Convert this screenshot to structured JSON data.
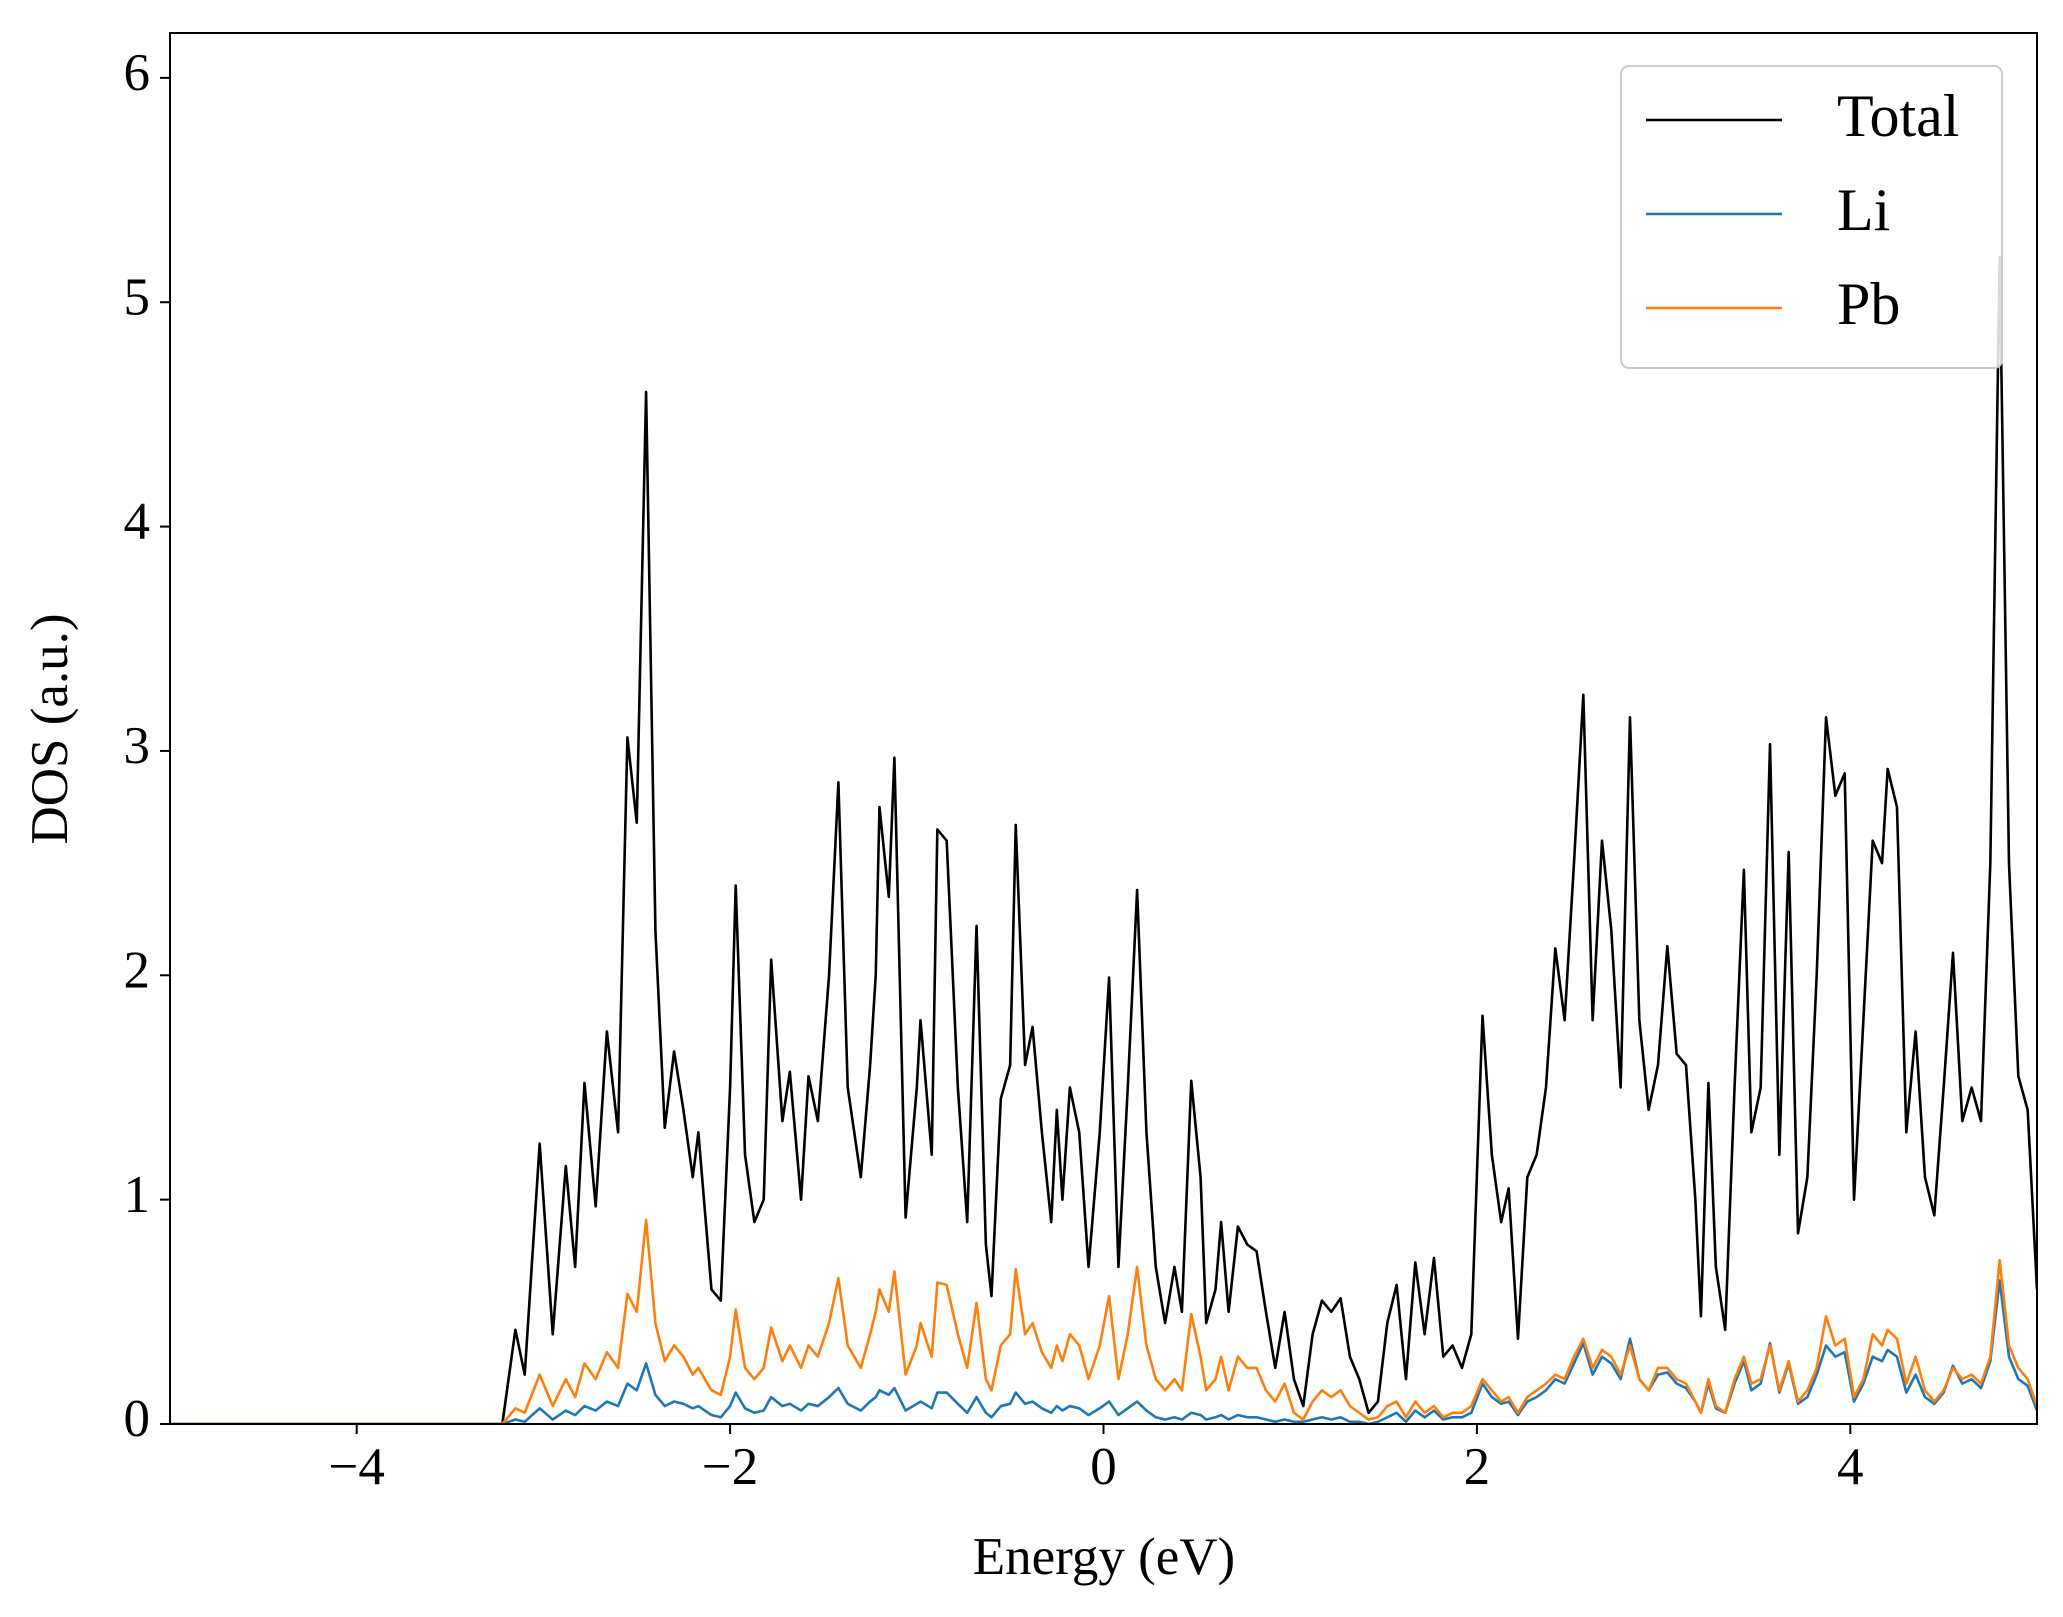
{
  "chart_data": {
    "type": "line",
    "xlabel": "Energy (eV)",
    "ylabel": "DOS (a.u.)",
    "xlim": [
      -5,
      5
    ],
    "ylim": [
      0,
      6.2
    ],
    "xticks": [
      {
        "value": -4,
        "label": "−4"
      },
      {
        "value": -2,
        "label": "−2"
      },
      0,
      2,
      4
    ],
    "yticks": [
      0,
      1,
      2,
      3,
      4,
      5,
      6
    ],
    "legend": "upper right",
    "grid": false,
    "x": [
      -5,
      -4,
      -3.3,
      -3.22,
      -3.15,
      -3.1,
      -3.02,
      -2.95,
      -2.88,
      -2.83,
      -2.78,
      -2.72,
      -2.66,
      -2.6,
      -2.55,
      -2.5,
      -2.45,
      -2.4,
      -2.35,
      -2.3,
      -2.25,
      -2.2,
      -2.17,
      -2.1,
      -2.05,
      -2.0,
      -1.97,
      -1.92,
      -1.87,
      -1.82,
      -1.78,
      -1.72,
      -1.68,
      -1.62,
      -1.58,
      -1.53,
      -1.47,
      -1.42,
      -1.37,
      -1.3,
      -1.25,
      -1.22,
      -1.2,
      -1.15,
      -1.12,
      -1.06,
      -1.0,
      -0.98,
      -0.92,
      -0.89,
      -0.84,
      -0.78,
      -0.73,
      -0.68,
      -0.63,
      -0.6,
      -0.55,
      -0.5,
      -0.47,
      -0.42,
      -0.38,
      -0.33,
      -0.28,
      -0.25,
      -0.22,
      -0.18,
      -0.13,
      -0.08,
      -0.02,
      0.03,
      0.08,
      0.13,
      0.18,
      0.23,
      0.28,
      0.33,
      0.38,
      0.42,
      0.47,
      0.52,
      0.55,
      0.6,
      0.63,
      0.67,
      0.72,
      0.77,
      0.82,
      0.87,
      0.92,
      0.97,
      1.02,
      1.07,
      1.12,
      1.17,
      1.22,
      1.27,
      1.32,
      1.37,
      1.42,
      1.47,
      1.52,
      1.57,
      1.62,
      1.67,
      1.72,
      1.77,
      1.82,
      1.87,
      1.92,
      1.97,
      2.03,
      2.08,
      2.13,
      2.17,
      2.22,
      2.27,
      2.32,
      2.37,
      2.42,
      2.47,
      2.52,
      2.57,
      2.62,
      2.67,
      2.72,
      2.77,
      2.82,
      2.87,
      2.92,
      2.97,
      3.02,
      3.07,
      3.12,
      3.17,
      3.2,
      3.24,
      3.28,
      3.33,
      3.38,
      3.43,
      3.47,
      3.52,
      3.57,
      3.62,
      3.67,
      3.72,
      3.77,
      3.82,
      3.87,
      3.92,
      3.97,
      4.02,
      4.07,
      4.12,
      4.17,
      4.2,
      4.25,
      4.3,
      4.35,
      4.4,
      4.45,
      4.5,
      4.55,
      4.6,
      4.65,
      4.7,
      4.75,
      4.8,
      4.85,
      4.9,
      4.95,
      5.0
    ],
    "series": [
      {
        "name": "Total",
        "color": "#000000",
        "values": [
          0,
          0,
          0,
          0,
          0.42,
          0.22,
          1.25,
          0.4,
          1.15,
          0.7,
          1.52,
          0.97,
          1.75,
          1.3,
          3.06,
          2.68,
          4.6,
          2.2,
          1.32,
          1.66,
          1.4,
          1.1,
          1.3,
          0.6,
          0.55,
          1.5,
          2.4,
          1.2,
          0.9,
          1.0,
          2.07,
          1.35,
          1.57,
          1.0,
          1.55,
          1.35,
          2.0,
          2.86,
          1.5,
          1.1,
          1.6,
          2.0,
          2.75,
          2.35,
          2.97,
          0.92,
          1.5,
          1.8,
          1.2,
          2.65,
          2.6,
          1.5,
          0.9,
          2.22,
          0.8,
          0.57,
          1.45,
          1.6,
          2.67,
          1.6,
          1.77,
          1.3,
          0.9,
          1.4,
          1.0,
          1.5,
          1.3,
          0.7,
          1.3,
          1.99,
          0.7,
          1.5,
          2.38,
          1.3,
          0.7,
          0.45,
          0.7,
          0.5,
          1.53,
          1.1,
          0.45,
          0.6,
          0.9,
          0.5,
          0.88,
          0.8,
          0.77,
          0.5,
          0.25,
          0.5,
          0.2,
          0.08,
          0.4,
          0.55,
          0.5,
          0.56,
          0.3,
          0.2,
          0.05,
          0.1,
          0.45,
          0.62,
          0.2,
          0.72,
          0.4,
          0.74,
          0.3,
          0.35,
          0.25,
          0.4,
          1.82,
          1.2,
          0.9,
          1.05,
          0.38,
          1.1,
          1.2,
          1.5,
          2.12,
          1.8,
          2.5,
          3.25,
          1.8,
          2.6,
          2.2,
          1.5,
          3.15,
          1.8,
          1.4,
          1.6,
          2.13,
          1.65,
          1.6,
          1.0,
          0.48,
          1.52,
          0.7,
          0.42,
          1.5,
          2.47,
          1.3,
          1.5,
          3.03,
          1.2,
          2.55,
          0.85,
          1.1,
          2.0,
          3.15,
          2.8,
          2.9,
          1.0,
          1.8,
          2.6,
          2.5,
          2.92,
          2.75,
          1.3,
          1.75,
          1.1,
          0.93,
          1.5,
          2.1,
          1.35,
          1.5,
          1.35,
          2.5,
          5.2,
          2.5,
          1.55,
          1.4,
          0.6
        ]
      },
      {
        "name": "Li",
        "color": "#1f77b4",
        "values": [
          0,
          0,
          0,
          0,
          0.02,
          0.01,
          0.07,
          0.02,
          0.06,
          0.04,
          0.08,
          0.06,
          0.1,
          0.08,
          0.18,
          0.15,
          0.27,
          0.13,
          0.08,
          0.1,
          0.09,
          0.07,
          0.08,
          0.04,
          0.03,
          0.08,
          0.14,
          0.07,
          0.05,
          0.06,
          0.12,
          0.08,
          0.09,
          0.06,
          0.09,
          0.08,
          0.12,
          0.16,
          0.09,
          0.06,
          0.1,
          0.12,
          0.15,
          0.13,
          0.16,
          0.06,
          0.09,
          0.1,
          0.07,
          0.14,
          0.14,
          0.09,
          0.05,
          0.12,
          0.05,
          0.03,
          0.08,
          0.09,
          0.14,
          0.09,
          0.1,
          0.07,
          0.05,
          0.08,
          0.06,
          0.08,
          0.07,
          0.04,
          0.07,
          0.1,
          0.04,
          0.07,
          0.1,
          0.06,
          0.03,
          0.02,
          0.03,
          0.02,
          0.05,
          0.04,
          0.02,
          0.03,
          0.04,
          0.02,
          0.04,
          0.03,
          0.03,
          0.02,
          0.01,
          0.02,
          0.01,
          0.01,
          0.02,
          0.03,
          0.02,
          0.03,
          0.01,
          0.01,
          0,
          0.01,
          0.03,
          0.05,
          0.01,
          0.06,
          0.03,
          0.06,
          0.02,
          0.03,
          0.03,
          0.05,
          0.18,
          0.12,
          0.09,
          0.1,
          0.04,
          0.1,
          0.12,
          0.15,
          0.2,
          0.18,
          0.27,
          0.36,
          0.22,
          0.3,
          0.27,
          0.2,
          0.38,
          0.2,
          0.15,
          0.22,
          0.23,
          0.18,
          0.16,
          0.1,
          0.05,
          0.18,
          0.07,
          0.05,
          0.18,
          0.28,
          0.15,
          0.18,
          0.36,
          0.14,
          0.27,
          0.09,
          0.12,
          0.22,
          0.35,
          0.3,
          0.32,
          0.1,
          0.18,
          0.3,
          0.28,
          0.33,
          0.3,
          0.14,
          0.22,
          0.12,
          0.09,
          0.14,
          0.26,
          0.18,
          0.2,
          0.16,
          0.28,
          0.64,
          0.3,
          0.2,
          0.17,
          0.06
        ]
      },
      {
        "name": "Pb",
        "color": "#ff7f0e",
        "values": [
          0,
          0,
          0,
          0,
          0.07,
          0.05,
          0.22,
          0.08,
          0.2,
          0.12,
          0.27,
          0.2,
          0.32,
          0.25,
          0.58,
          0.5,
          0.91,
          0.45,
          0.28,
          0.35,
          0.3,
          0.22,
          0.25,
          0.15,
          0.13,
          0.3,
          0.51,
          0.25,
          0.2,
          0.25,
          0.43,
          0.28,
          0.35,
          0.25,
          0.35,
          0.3,
          0.45,
          0.65,
          0.35,
          0.25,
          0.4,
          0.5,
          0.6,
          0.5,
          0.68,
          0.22,
          0.35,
          0.45,
          0.3,
          0.63,
          0.62,
          0.4,
          0.25,
          0.54,
          0.2,
          0.15,
          0.35,
          0.4,
          0.69,
          0.4,
          0.45,
          0.32,
          0.25,
          0.35,
          0.28,
          0.4,
          0.35,
          0.2,
          0.35,
          0.57,
          0.2,
          0.4,
          0.7,
          0.35,
          0.2,
          0.15,
          0.2,
          0.15,
          0.49,
          0.3,
          0.15,
          0.2,
          0.3,
          0.15,
          0.3,
          0.25,
          0.25,
          0.15,
          0.1,
          0.18,
          0.05,
          0.02,
          0.1,
          0.15,
          0.12,
          0.15,
          0.08,
          0.05,
          0.02,
          0.03,
          0.08,
          0.1,
          0.03,
          0.1,
          0.05,
          0.08,
          0.03,
          0.05,
          0.05,
          0.08,
          0.2,
          0.15,
          0.1,
          0.12,
          0.05,
          0.12,
          0.15,
          0.18,
          0.22,
          0.2,
          0.3,
          0.38,
          0.25,
          0.33,
          0.3,
          0.22,
          0.35,
          0.2,
          0.15,
          0.25,
          0.25,
          0.2,
          0.18,
          0.1,
          0.05,
          0.2,
          0.08,
          0.05,
          0.2,
          0.3,
          0.18,
          0.2,
          0.35,
          0.15,
          0.28,
          0.1,
          0.15,
          0.25,
          0.48,
          0.35,
          0.38,
          0.12,
          0.2,
          0.4,
          0.35,
          0.42,
          0.38,
          0.18,
          0.3,
          0.15,
          0.1,
          0.15,
          0.25,
          0.2,
          0.22,
          0.18,
          0.3,
          0.73,
          0.35,
          0.25,
          0.2,
          0.08
        ]
      }
    ]
  }
}
